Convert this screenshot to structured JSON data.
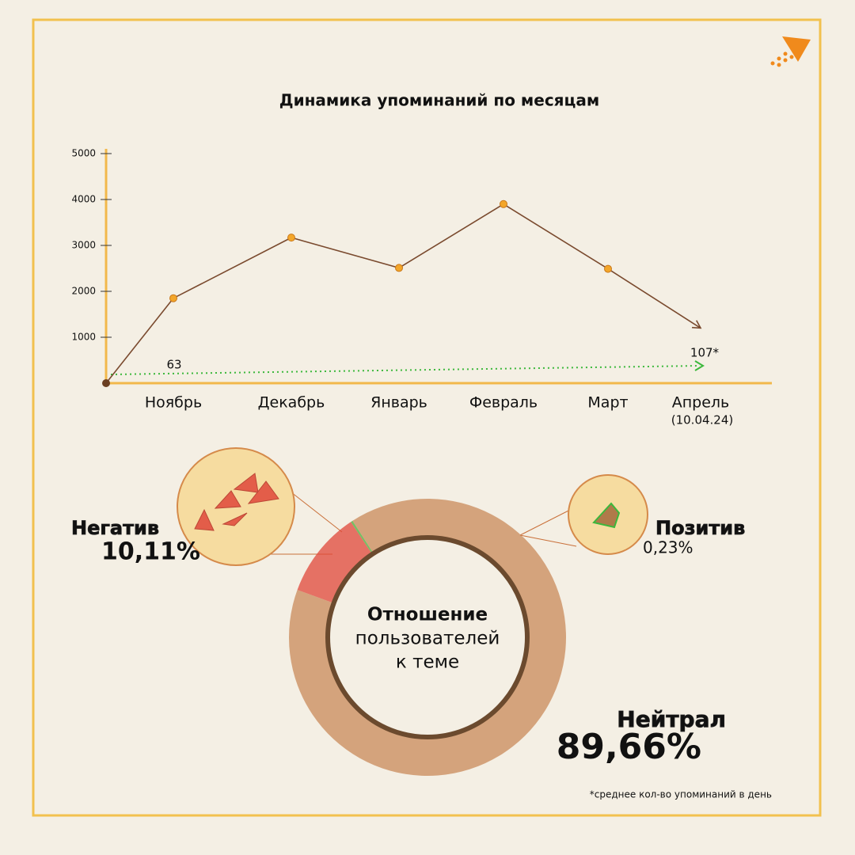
{
  "chart_data": [
    {
      "type": "line",
      "title": "Динамика упоминаний по месяцам",
      "categories": [
        null,
        "Ноябрь",
        "Декабрь",
        "Январь",
        "Февраль",
        "Март",
        "Апрель"
      ],
      "date_note": "(10.04.24)",
      "series": [
        {
          "color": "#7a4a2e",
          "values": [
            0,
            1850,
            3170,
            2510,
            3900,
            2490,
            1200
          ]
        }
      ],
      "ylim": [
        0,
        5000
      ],
      "yticks": [
        1000,
        2000,
        3000,
        4000,
        5000
      ],
      "annotations": [
        "63",
        "107*"
      ],
      "footnote": "*среднее кол-во упоминаний в день"
    },
    {
      "type": "pie",
      "title_lines": [
        "Отношение",
        "пользователей",
        "к теме"
      ],
      "categories": [
        "Негатив",
        "Позитив",
        "Нейтрал"
      ],
      "values": [
        10.11,
        0.23,
        89.66
      ],
      "value_labels": [
        "10,11%",
        "0,23%",
        "89,66%"
      ],
      "colors": [
        "#e0473a",
        "#4caf3a",
        "#c98a5a"
      ]
    }
  ]
}
